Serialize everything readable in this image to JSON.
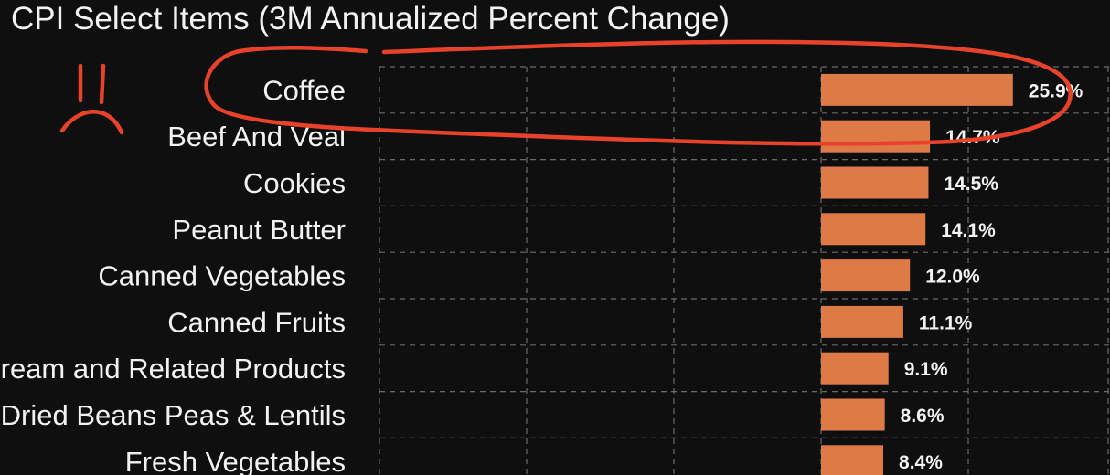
{
  "chart_data": {
    "type": "bar",
    "orientation": "horizontal",
    "title": "CPI Select Items (3M Annualized Percent Change)",
    "categories": [
      "Coffee",
      "Beef And Veal",
      "Cookies",
      "Peanut Butter",
      "Canned Vegetables",
      "Canned Fruits",
      "Ice Cream and Related Products",
      "Dried Beans Peas & Lentils",
      "Fresh Vegetables"
    ],
    "values": [
      25.9,
      14.7,
      14.5,
      14.1,
      12.0,
      11.1,
      9.1,
      8.6,
      8.4
    ],
    "value_labels": [
      "25.9%",
      "14.7%",
      "14.5%",
      "14.1%",
      "12.0%",
      "11.1%",
      "9.1%",
      "8.6%",
      "8.4%"
    ],
    "xlim": [
      -30,
      30
    ],
    "grid": true,
    "bar_color": "#dd7a45",
    "annotations": {
      "circle_color": "#e8432a",
      "circled_item": "Coffee",
      "face": "sad"
    }
  },
  "colors": {
    "background": "#0f0f0f",
    "text": "#f2f2f2",
    "grid": "#6a6a6a"
  }
}
